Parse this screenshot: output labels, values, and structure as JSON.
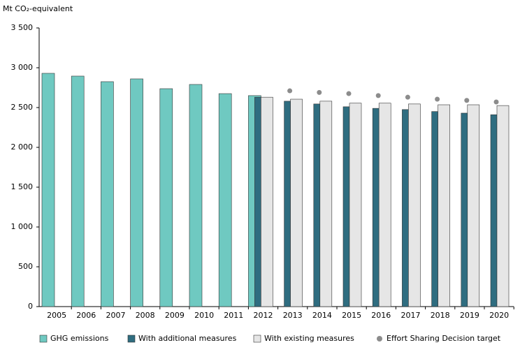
{
  "chart_data": {
    "type": "bar",
    "y_label": "Mt CO₂-equivalent",
    "categories": [
      "2005",
      "2006",
      "2007",
      "2008",
      "2009",
      "2010",
      "2011",
      "2012",
      "2013",
      "2014",
      "2015",
      "2016",
      "2017",
      "2018",
      "2019",
      "2020"
    ],
    "series": [
      {
        "name": "GHG emissions",
        "color": "#6fc9c1",
        "type": "bar",
        "values": [
          2930,
          2895,
          2825,
          2860,
          2737,
          2790,
          2675,
          2650,
          null,
          null,
          null,
          null,
          null,
          null,
          null,
          null
        ]
      },
      {
        "name": "With additional measures",
        "color": "#2f6d80",
        "type": "bar",
        "values": [
          null,
          null,
          null,
          null,
          null,
          null,
          null,
          2630,
          2580,
          2545,
          2510,
          2490,
          2475,
          2450,
          2430,
          2410
        ]
      },
      {
        "name": "With existing measures",
        "color": "#e6e6e6",
        "type": "bar",
        "values": [
          null,
          null,
          null,
          null,
          null,
          null,
          null,
          2630,
          2605,
          2580,
          2555,
          2555,
          2545,
          2535,
          2535,
          2525
        ]
      },
      {
        "name": "Effort Sharing Decision target",
        "color": "#8c8c8c",
        "type": "scatter",
        "values": [
          null,
          null,
          null,
          null,
          null,
          null,
          null,
          null,
          2710,
          2690,
          2675,
          2650,
          2630,
          2605,
          2590,
          2570
        ]
      }
    ],
    "ylim": [
      0,
      3500
    ],
    "yticks": [
      0,
      500,
      {
        "value": 1000,
        "label": "1 000"
      },
      {
        "value": 1500,
        "label": "1 500"
      },
      {
        "value": 2000,
        "label": "2 000"
      },
      {
        "value": 2500,
        "label": "2 500"
      },
      {
        "value": 3000,
        "label": "3 000"
      },
      {
        "value": 3500,
        "label": "3 500"
      }
    ],
    "grid": false
  }
}
